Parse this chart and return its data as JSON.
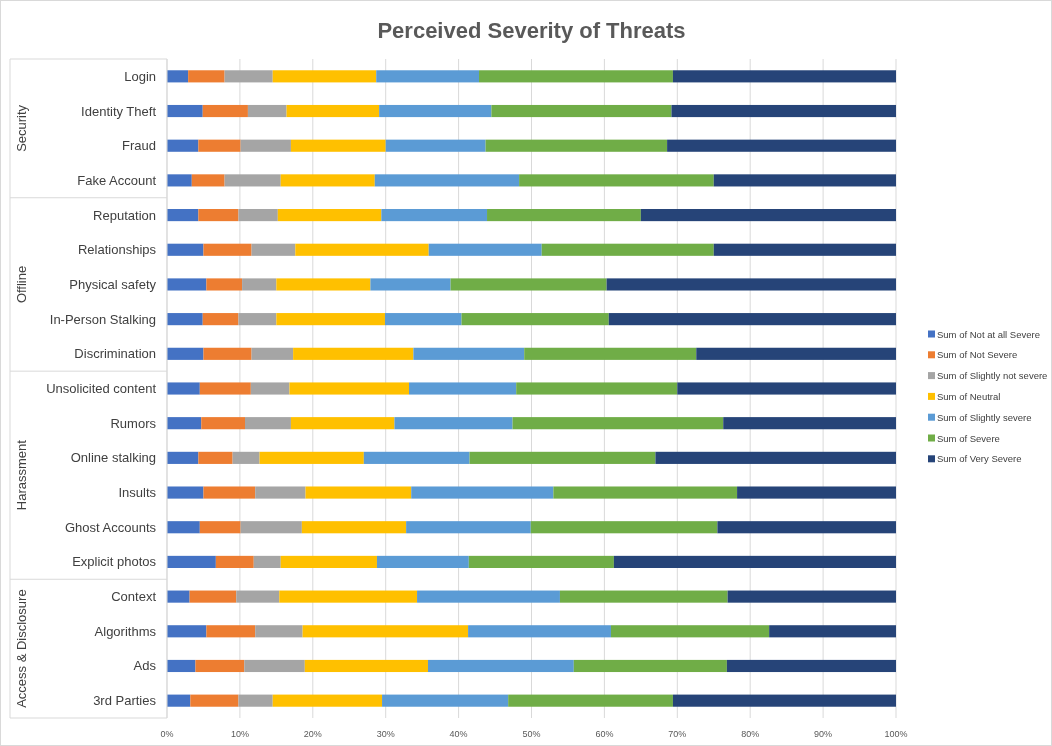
{
  "chart_data": {
    "type": "bar",
    "orientation": "horizontal",
    "stacked": true,
    "title": "Perceived Severity of Threats",
    "categories": [
      "Login",
      "Identity Theft",
      "Fraud",
      "Fake Account",
      "Reputation",
      "Relationships",
      "Physical safety",
      "In-Person Stalking",
      "Discrimination",
      "Unsolicited content",
      "Rumors",
      "Online stalking",
      "Insults",
      "Ghost Accounts",
      "Explicit photos",
      "Context",
      "Algorithms",
      "Ads",
      "3rd Parties"
    ],
    "series": [
      {
        "name": "Sum of Not at all Severe",
        "color": "#4472c4",
        "values": [
          2.9,
          4.9,
          4.3,
          3.4,
          4.3,
          5.0,
          5.4,
          4.9,
          5.0,
          4.5,
          4.7,
          4.3,
          5.0,
          4.5,
          6.7,
          3.1,
          5.4,
          3.9,
          3.2
        ]
      },
      {
        "name": "Sum of Not Severe",
        "color": "#ed7d31",
        "values": [
          5.0,
          6.2,
          5.8,
          4.5,
          5.5,
          6.6,
          4.9,
          4.9,
          6.6,
          7.0,
          6.0,
          4.7,
          7.1,
          5.6,
          5.2,
          6.4,
          6.7,
          6.7,
          6.6
        ]
      },
      {
        "name": "Sum of Slightly not severe",
        "color": "#a5a5a5",
        "values": [
          6.6,
          5.3,
          6.9,
          7.7,
          5.4,
          6.0,
          4.7,
          5.2,
          5.7,
          5.3,
          6.3,
          3.7,
          6.9,
          8.4,
          3.7,
          5.9,
          6.5,
          8.3,
          4.7
        ]
      },
      {
        "name": "Sum of Neutral",
        "color": "#ffc000",
        "values": [
          14.2,
          12.7,
          13.0,
          12.9,
          14.2,
          18.3,
          12.9,
          14.9,
          16.5,
          16.4,
          14.2,
          14.3,
          14.5,
          14.3,
          13.2,
          18.9,
          22.7,
          16.9,
          15.0
        ]
      },
      {
        "name": "Sum of Slightly severe",
        "color": "#5b9bd5",
        "values": [
          14.1,
          15.4,
          13.7,
          19.8,
          14.5,
          15.5,
          11.0,
          10.5,
          15.2,
          14.7,
          16.2,
          14.5,
          19.5,
          17.1,
          12.6,
          19.6,
          19.6,
          20.0,
          17.3
        ]
      },
      {
        "name": "Sum of Severe",
        "color": "#70ad47",
        "values": [
          26.6,
          24.7,
          24.9,
          26.7,
          21.1,
          23.6,
          21.4,
          20.2,
          23.6,
          22.1,
          28.9,
          25.5,
          25.2,
          25.6,
          19.9,
          23.0,
          21.7,
          21.0,
          22.6
        ]
      },
      {
        "name": "Sum of Very Severe",
        "color": "#264478",
        "values": [
          30.6,
          30.8,
          31.4,
          25.0,
          35.0,
          25.0,
          39.7,
          39.4,
          27.4,
          30.0,
          23.7,
          33.0,
          21.8,
          24.5,
          38.7,
          23.1,
          17.4,
          23.2,
          30.6
        ]
      }
    ],
    "xlim": [
      0,
      100
    ],
    "xticks": [
      {
        "value": 0,
        "label": "0%"
      },
      {
        "value": 10,
        "label": "10%"
      },
      {
        "value": 20,
        "label": "20%"
      },
      {
        "value": 30,
        "label": "30%"
      },
      {
        "value": 40,
        "label": "40%"
      },
      {
        "value": 50,
        "label": "50%"
      },
      {
        "value": 60,
        "label": "60%"
      },
      {
        "value": 70,
        "label": "70%"
      },
      {
        "value": 80,
        "label": "80%"
      },
      {
        "value": 90,
        "label": "90%"
      },
      {
        "value": 100,
        "label": "100%"
      }
    ],
    "grid": "x",
    "legend": "right",
    "annotations": [
      "Security",
      "Offline",
      "Harassment",
      "Access & Disclosure"
    ]
  }
}
